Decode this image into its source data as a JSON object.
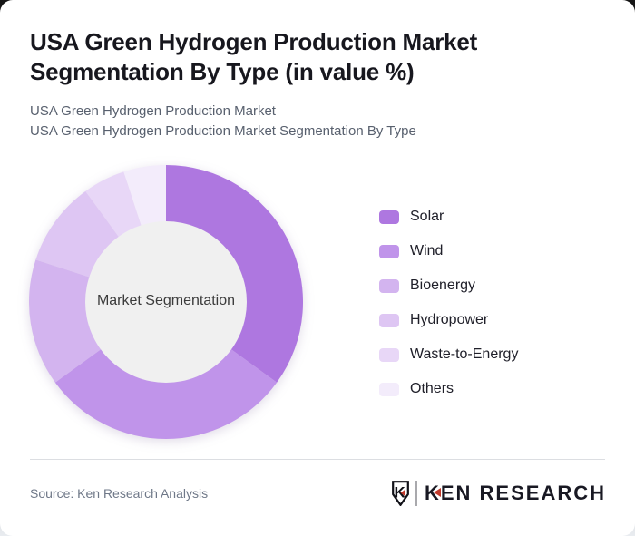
{
  "page": {
    "title": "USA Green Hydrogen Production Market\nSegmentation By Type (in value %)",
    "subtitle_lines": [
      "USA Green Hydrogen Production Market",
      "USA Green Hydrogen Production Market Segmentation By Type"
    ],
    "source": "Source: Ken Research Analysis",
    "brand": {
      "name": "KEN RESEARCH",
      "monogram": "K",
      "accent_red": "#c0392b",
      "ink": "#191923"
    }
  },
  "chart_data": {
    "type": "pie",
    "variant": "donut",
    "title": "USA Green Hydrogen Production Market Segmentation By Type (in value %)",
    "center_label": "Market Segmentation",
    "labels": [
      "Solar",
      "Wind",
      "Bioenergy",
      "Hydropower",
      "Waste-to-Energy",
      "Others"
    ],
    "values": [
      35,
      30,
      15,
      10,
      5,
      5
    ],
    "unit": "value %",
    "colors": [
      "#ae77e0",
      "#c094ea",
      "#d3b4ef",
      "#dec6f3",
      "#e8d7f7",
      "#f3ecfb"
    ],
    "start_angle_deg": 0,
    "direction": "clockwise",
    "inner_radius_ratio": 0.59,
    "hole_color": "#f0f0f0",
    "legend_position": "right"
  }
}
